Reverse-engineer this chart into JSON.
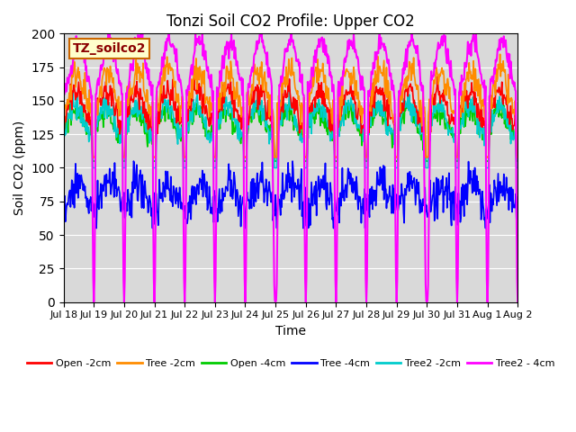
{
  "title": "Tonzi Soil CO2 Profile: Upper CO2",
  "xlabel": "Time",
  "ylabel": "Soil CO2 (ppm)",
  "ylim": [
    0,
    200
  ],
  "legend_label": "TZ_soilco2",
  "series": {
    "Open -2cm": {
      "color": "#ff0000",
      "lw": 1.2
    },
    "Tree -2cm": {
      "color": "#ff8c00",
      "lw": 1.2
    },
    "Open -4cm": {
      "color": "#00cc00",
      "lw": 1.2
    },
    "Tree -4cm": {
      "color": "#0000ff",
      "lw": 1.2
    },
    "Tree2 -2cm": {
      "color": "#00cccc",
      "lw": 1.2
    },
    "Tree2 - 4cm": {
      "color": "#ff00ff",
      "lw": 1.5
    }
  },
  "background_color": "#d9d9d9",
  "tick_labels": [
    "Jul 18",
    "Jul 19",
    "Jul 20",
    "Jul 21",
    "Jul 22",
    "Jul 23",
    "Jul 24",
    "Jul 25",
    "Jul 26",
    "Jul 27",
    "Jul 28",
    "Jul 29",
    "Jul 30",
    "Jul 31",
    "Aug 1",
    "Aug 2"
  ]
}
